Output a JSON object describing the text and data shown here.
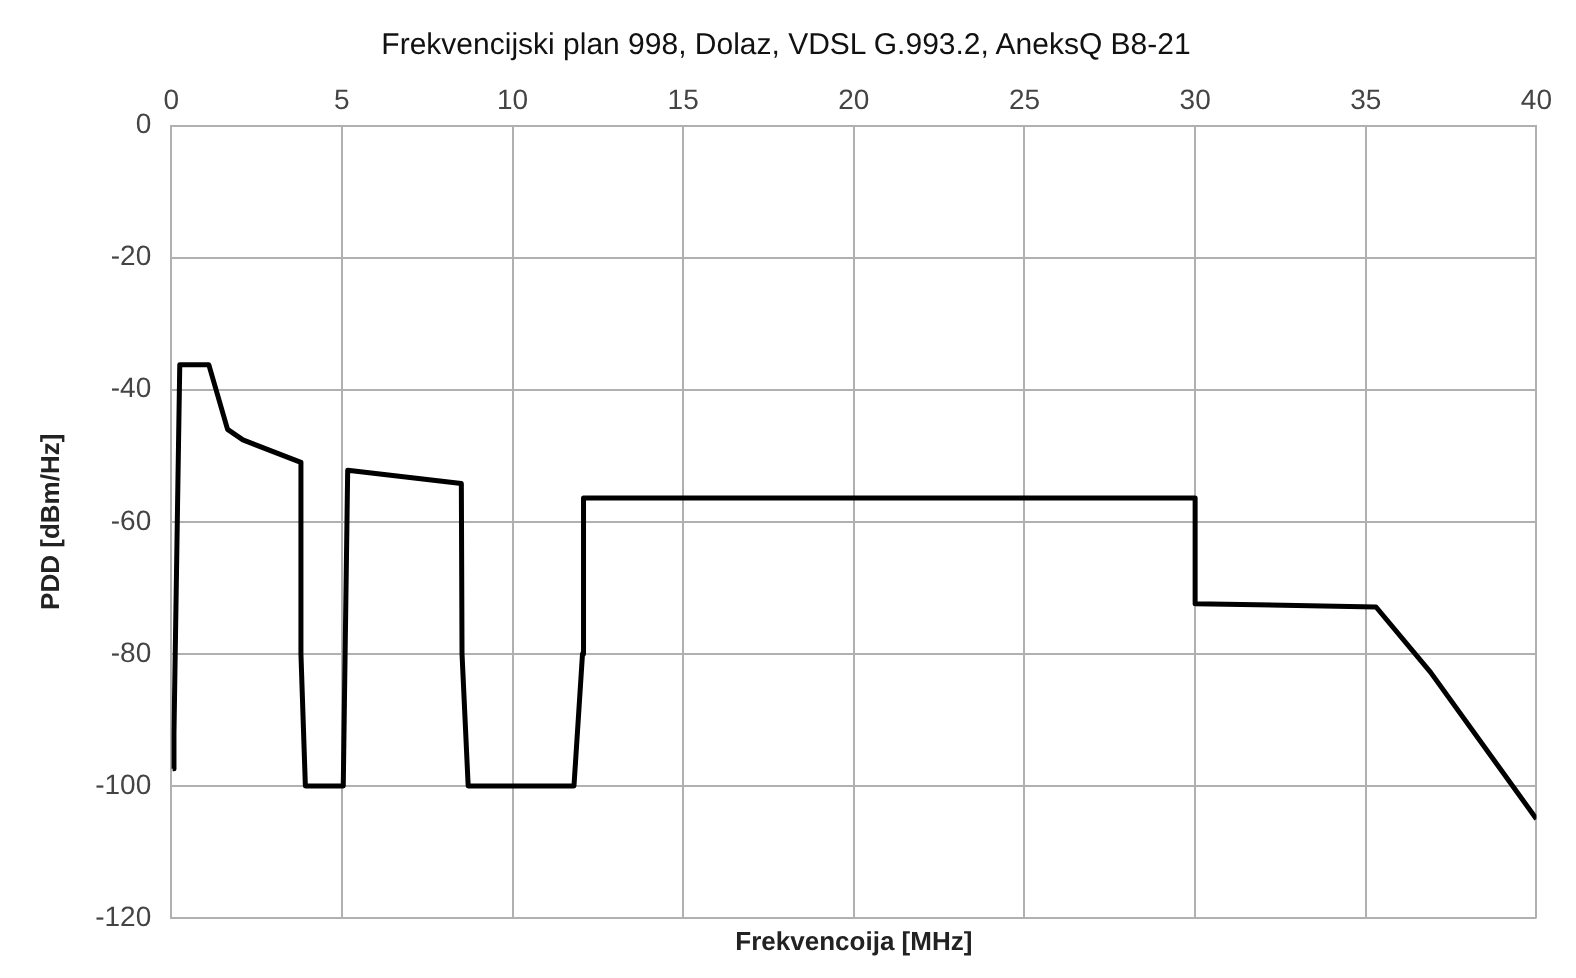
{
  "chart_data": {
    "type": "line",
    "title": "Frekvencijski plan 998, Dolaz, VDSL G.993.2, AneksQ B8-21",
    "xlabel": "Frekvencoija [MHz]",
    "ylabel": "PDD [dBm/Hz]",
    "x": [
      0.04,
      0.08,
      0.25,
      1.1,
      1.65,
      2.1,
      3.8,
      3.8,
      3.93,
      5.04,
      5.17,
      8.5,
      8.52,
      8.7,
      11.8,
      12.05,
      12.08,
      30,
      30,
      35.3,
      36.9,
      40
    ],
    "series": [
      {
        "color": "#000000",
        "values": [
          -97.4,
          -92,
          -36.2,
          -36.2,
          -46,
          -47.6,
          -51,
          -80,
          -100,
          -100,
          -52.2,
          -54.2,
          -80,
          -100,
          -100,
          -80,
          -56.4,
          -56.4,
          -72.4,
          -72.9,
          -82.8,
          -105
        ]
      }
    ],
    "xlim": [
      0,
      40
    ],
    "xticks": [
      0,
      5,
      10,
      15,
      20,
      25,
      30,
      35,
      40
    ],
    "ylim": [
      -120,
      0
    ],
    "yticks": [
      -120,
      -100,
      -80,
      -60,
      -40,
      -20,
      0
    ],
    "grid": true,
    "legend": false,
    "marker": "none",
    "line_style": "solid"
  }
}
